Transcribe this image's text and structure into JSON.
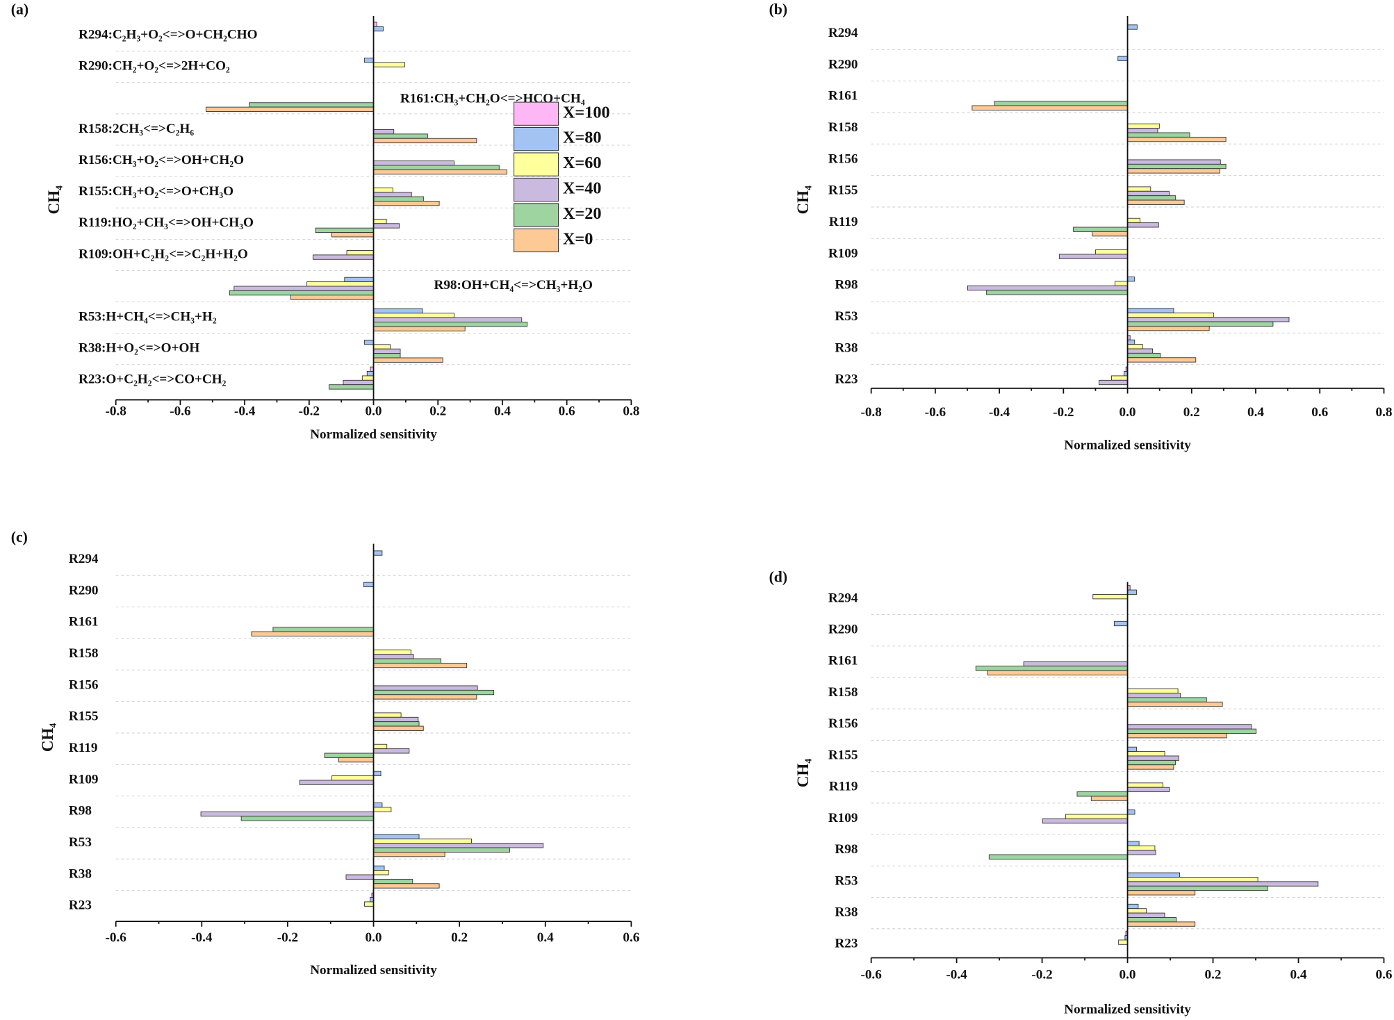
{
  "chart_data": [
    {
      "type": "bar",
      "orientation": "horizontal",
      "panel_label": "(a)",
      "x_label": "Normalized sensitivity",
      "y_label": "CH₄",
      "categories": [
        "R294:C₂H₃+O₂<=>O+CH₂CHO",
        "R290:CH₂+O₂<=>2H+CO₂",
        "R161:CH₃+CH₂O<=>HCO+CH₄",
        "R158:2CH₃<=>C₂H₆",
        "R156:CH₃+O₂<=>OH+CH₂O",
        "R155:CH₃+O₂<=>O+CH₃O",
        "R119:HO₂+CH₃<=>OH+CH₃O",
        "R109:OH+C₂H₂<=>C₂H+H₂O",
        "R98:OH+CH₄<=>CH₃+H₂O",
        "R53:H+CH₄<=>CH₃+H₂",
        "R38:H+O₂<=>O+OH",
        "R23:O+C₂H₂<=>CO+CH₂"
      ],
      "xlim": [
        -0.8,
        0.8
      ],
      "xticks": [
        -0.8,
        -0.6,
        -0.4,
        -0.2,
        {
          "value": 0,
          "label": "0.0"
        },
        0.2,
        0.4,
        0.6,
        0.8
      ],
      "legend": true,
      "series": [
        {
          "name": "X=100",
          "color": "#fdb7f4",
          "values": [
            0.01,
            0,
            0,
            0,
            0,
            0,
            0,
            0,
            0,
            0,
            0,
            -0.01
          ]
        },
        {
          "name": "X=80",
          "color": "#a3c4f3",
          "values": [
            0.03,
            -0.028,
            0,
            0,
            0,
            0,
            0,
            0,
            -0.09,
            0.152,
            -0.028,
            -0.02
          ]
        },
        {
          "name": "X=60",
          "color": "#ffff9c",
          "values": [
            0,
            0.097,
            0,
            0,
            0,
            0.06,
            0.04,
            -0.083,
            -0.207,
            0.25,
            0.052,
            -0.035
          ]
        },
        {
          "name": "X=40",
          "color": "#cbbadf",
          "values": [
            0,
            0,
            0,
            0.063,
            0.25,
            0.118,
            0.08,
            -0.188,
            -0.433,
            0.46,
            0.083,
            -0.094
          ]
        },
        {
          "name": "X=20",
          "color": "#9dd4a0",
          "values": [
            0,
            0,
            -0.386,
            0.168,
            0.39,
            0.155,
            -0.18,
            0,
            -0.447,
            0.477,
            0.083,
            -0.138
          ]
        },
        {
          "name": "X=0",
          "color": "#fdc995",
          "values": [
            0,
            0,
            -0.52,
            0.32,
            0.414,
            0.204,
            -0.13,
            0,
            -0.257,
            0.284,
            0.215,
            0
          ]
        }
      ]
    },
    {
      "type": "bar",
      "orientation": "horizontal",
      "panel_label": "(b)",
      "x_label": "Normalized sensitivity",
      "y_label": "CH₄",
      "categories": [
        "R294",
        "R290",
        "R161",
        "R158",
        "R156",
        "R155",
        "R119",
        "R109",
        "R98",
        "R53",
        "R38",
        "R23"
      ],
      "xlim": [
        -0.8,
        0.8
      ],
      "xticks": [
        -0.8,
        -0.6,
        -0.4,
        -0.2,
        {
          "value": 0,
          "label": "0.0"
        },
        0.2,
        0.4,
        0.6,
        0.8
      ],
      "legend": false,
      "series": [
        {
          "color": "#fdb7f4",
          "values": [
            0,
            0,
            0,
            0,
            0,
            0,
            0,
            0,
            0,
            0,
            0.008,
            -0.005
          ]
        },
        {
          "color": "#a3c4f3",
          "values": [
            0.03,
            -0.03,
            0,
            0,
            0,
            0,
            0,
            0,
            0.022,
            0.144,
            0.022,
            -0.011
          ]
        },
        {
          "color": "#ffff9c",
          "values": [
            0,
            0,
            0,
            0.1,
            0,
            0.072,
            0.039,
            -0.1,
            -0.039,
            0.269,
            0.047,
            -0.05
          ]
        },
        {
          "color": "#cbbadf",
          "values": [
            0,
            0,
            0,
            0.094,
            0.29,
            0.13,
            0.097,
            -0.213,
            -0.499,
            0.504,
            0.078,
            -0.089
          ]
        },
        {
          "color": "#9dd4a0",
          "values": [
            0,
            0,
            -0.415,
            0.194,
            0.307,
            0.15,
            -0.169,
            0,
            -0.44,
            0.454,
            0.102,
            0
          ]
        },
        {
          "color": "#fdc995",
          "values": [
            0,
            0,
            -0.485,
            0.307,
            0.288,
            0.177,
            -0.11,
            0,
            0,
            0.255,
            0.213,
            0
          ]
        }
      ]
    },
    {
      "type": "bar",
      "orientation": "horizontal",
      "panel_label": "(c)",
      "x_label": "Normalized sensitivity",
      "y_label": "CH₄",
      "categories": [
        "R294",
        "R290",
        "R161",
        "R158",
        "R156",
        "R155",
        "R119",
        "R109",
        "R98",
        "R53",
        "R38",
        "R23"
      ],
      "xlim": [
        -0.6,
        0.6
      ],
      "xticks": [
        -0.6,
        -0.4,
        -0.2,
        {
          "value": 0,
          "label": "0.0"
        },
        0.2,
        0.4,
        0.6
      ],
      "legend": false,
      "series": [
        {
          "color": "#fdb7f4",
          "values": [
            0,
            0,
            0,
            0,
            0,
            0,
            0,
            0,
            0,
            0,
            0,
            -0.004
          ]
        },
        {
          "color": "#a3c4f3",
          "values": [
            0.02,
            -0.023,
            0,
            0,
            0,
            0,
            0,
            0.017,
            0.02,
            0.106,
            0.025,
            -0.008
          ]
        },
        {
          "color": "#ffff9c",
          "values": [
            0,
            0,
            0,
            0.087,
            0,
            0.064,
            0.031,
            -0.097,
            0.041,
            0.228,
            0.035,
            -0.021
          ]
        },
        {
          "color": "#cbbadf",
          "values": [
            0,
            0,
            0,
            0.093,
            0.242,
            0.104,
            0.083,
            -0.172,
            -0.402,
            0.395,
            -0.064,
            0
          ]
        },
        {
          "color": "#9dd4a0",
          "values": [
            0,
            0,
            -0.234,
            0.157,
            0.28,
            0.106,
            -0.114,
            0,
            -0.308,
            0.317,
            0.091,
            0
          ]
        },
        {
          "color": "#fdc995",
          "values": [
            0,
            0,
            -0.284,
            0.217,
            0.24,
            0.116,
            -0.081,
            0,
            0,
            0.166,
            0.153,
            0
          ]
        }
      ]
    },
    {
      "type": "bar",
      "orientation": "horizontal",
      "panel_label": "(d)",
      "x_label": "Normalized sensitivity",
      "y_label": "CH₄",
      "categories": [
        "R294",
        "R290",
        "R161",
        "R158",
        "R156",
        "R155",
        "R119",
        "R109",
        "R98",
        "R53",
        "R38",
        "R23"
      ],
      "xlim": [
        -0.6,
        0.6
      ],
      "xticks": [
        -0.6,
        -0.4,
        -0.2,
        {
          "value": 0,
          "label": "0.0"
        },
        0.2,
        0.4,
        0.6
      ],
      "legend": false,
      "series": [
        {
          "color": "#fdb7f4",
          "values": [
            0.006,
            0,
            0,
            0,
            0,
            0,
            0,
            0,
            0,
            0,
            0,
            -0.004
          ]
        },
        {
          "color": "#a3c4f3",
          "values": [
            0.021,
            -0.031,
            0,
            0,
            0,
            0.021,
            0,
            0.017,
            0.027,
            0.122,
            0.025,
            -0.006
          ]
        },
        {
          "color": "#ffff9c",
          "values": [
            -0.081,
            0,
            0,
            0.118,
            0,
            0.087,
            0.083,
            -0.145,
            0.064,
            0.305,
            0.044,
            -0.021
          ]
        },
        {
          "color": "#cbbadf",
          "values": [
            0,
            0,
            -0.243,
            0.124,
            0.29,
            0.12,
            0.098,
            -0.199,
            0.066,
            0.446,
            0.087,
            0
          ]
        },
        {
          "color": "#9dd4a0",
          "values": [
            0,
            0,
            -0.355,
            0.185,
            0.301,
            0.112,
            -0.118,
            0,
            -0.324,
            0.328,
            0.114,
            0
          ]
        },
        {
          "color": "#fdc995",
          "values": [
            0,
            0,
            -0.328,
            0.222,
            0.232,
            0.108,
            -0.085,
            0,
            0,
            0.158,
            0.158,
            0
          ]
        }
      ]
    }
  ]
}
